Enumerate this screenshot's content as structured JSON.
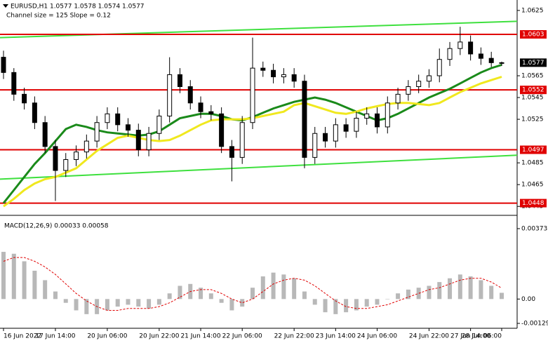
{
  "chart_data": {
    "type": "candlestick",
    "title": "EURUSD,H1  1.0577 1.0578 1.0574 1.0577",
    "subtitle": "Channel size = 125 Slope = 0.12",
    "categories": [
      "16 Jun 2022",
      null,
      null,
      null,
      null,
      "17 Jun 14:00",
      null,
      null,
      null,
      null,
      "20 Jun 06:00",
      null,
      null,
      null,
      null,
      "20 Jun 22:00",
      null,
      null,
      null,
      "21 Jun 14:00",
      null,
      null,
      null,
      "22 Jun 06:00",
      null,
      null,
      null,
      null,
      "22 Jun 22:00",
      null,
      null,
      null,
      "23 Jun 14:00",
      null,
      null,
      null,
      "24 Jun 06:00",
      null,
      null,
      null,
      null,
      "24 Jun 22:00",
      null,
      null,
      null,
      "27 Jun 14:00",
      null,
      null,
      "28 Jun 06:00"
    ],
    "ohlc": [
      [
        1.0582,
        1.0588,
        1.0562,
        1.0568
      ],
      [
        1.0568,
        1.0572,
        1.0542,
        1.0548
      ],
      [
        1.0548,
        1.0554,
        1.0534,
        1.054
      ],
      [
        1.054,
        1.0546,
        1.0516,
        1.0522
      ],
      [
        1.0522,
        1.0528,
        1.0494,
        1.05
      ],
      [
        1.05,
        1.0506,
        1.045,
        1.0478
      ],
      [
        1.0478,
        1.0494,
        1.0472,
        1.0488
      ],
      [
        1.0488,
        1.0501,
        1.0482,
        1.0495
      ],
      [
        1.0495,
        1.0511,
        1.0489,
        1.0505
      ],
      [
        1.0505,
        1.0528,
        1.0499,
        1.0522
      ],
      [
        1.0522,
        1.0536,
        1.0516,
        1.053
      ],
      [
        1.053,
        1.0536,
        1.0514,
        1.052
      ],
      [
        1.052,
        1.0526,
        1.0509,
        1.0515
      ],
      [
        1.0515,
        1.0521,
        1.0491,
        1.0497
      ],
      [
        1.0497,
        1.0518,
        1.0491,
        1.0512
      ],
      [
        1.0512,
        1.0534,
        1.0506,
        1.0528
      ],
      [
        1.0528,
        1.0582,
        1.0522,
        1.0566
      ],
      [
        1.0566,
        1.0572,
        1.0549,
        1.0555
      ],
      [
        1.0555,
        1.0561,
        1.0534,
        1.054
      ],
      [
        1.054,
        1.0546,
        1.0526,
        1.0532
      ],
      [
        1.0532,
        1.0538,
        1.0524,
        1.053
      ],
      [
        1.053,
        1.0536,
        1.0494,
        1.05
      ],
      [
        1.05,
        1.0506,
        1.0468,
        1.049
      ],
      [
        1.049,
        1.0528,
        1.0484,
        1.0522
      ],
      [
        1.0522,
        1.06,
        1.0516,
        1.0572
      ],
      [
        1.0572,
        1.0578,
        1.0564,
        1.057
      ],
      [
        1.057,
        1.0576,
        1.0558,
        1.0564
      ],
      [
        1.0564,
        1.0572,
        1.0558,
        1.0566
      ],
      [
        1.0566,
        1.0572,
        1.0554,
        1.056
      ],
      [
        1.056,
        1.0566,
        1.048,
        1.049
      ],
      [
        1.049,
        1.0518,
        1.0484,
        1.0512
      ],
      [
        1.0512,
        1.0518,
        1.0499,
        1.0505
      ],
      [
        1.0505,
        1.0526,
        1.0499,
        1.052
      ],
      [
        1.052,
        1.0526,
        1.0508,
        1.0514
      ],
      [
        1.0514,
        1.0532,
        1.0508,
        1.0526
      ],
      [
        1.0526,
        1.0536,
        1.052,
        1.053
      ],
      [
        1.053,
        1.0536,
        1.0512,
        1.0518
      ],
      [
        1.0518,
        1.0546,
        1.0512,
        1.054
      ],
      [
        1.054,
        1.0554,
        1.0534,
        1.0548
      ],
      [
        1.0548,
        1.0561,
        1.0542,
        1.0555
      ],
      [
        1.0555,
        1.0566,
        1.0549,
        1.056
      ],
      [
        1.056,
        1.0571,
        1.0554,
        1.0565
      ],
      [
        1.0565,
        1.059,
        1.0559,
        1.058
      ],
      [
        1.058,
        1.0596,
        1.0574,
        1.059
      ],
      [
        1.059,
        1.061,
        1.0584,
        1.0596
      ],
      [
        1.0596,
        1.0602,
        1.0579,
        1.0585
      ],
      [
        1.0585,
        1.0591,
        1.0575,
        1.0581
      ],
      [
        1.0581,
        1.0587,
        1.0573,
        1.0577
      ],
      [
        1.0577,
        1.0578,
        1.0574,
        1.0577
      ]
    ],
    "moving_averages": [
      {
        "color": "#1a8a1a",
        "values": [
          1.0448,
          1.046,
          1.0472,
          1.0484,
          1.0494,
          1.0505,
          1.0516,
          1.052,
          1.0518,
          1.0515,
          1.0513,
          1.0512,
          1.0511,
          1.051,
          1.0511,
          1.0514,
          1.052,
          1.0526,
          1.0528,
          1.053,
          1.053,
          1.0528,
          1.0525,
          1.0524,
          1.0527,
          1.0531,
          1.0535,
          1.0538,
          1.0541,
          1.0543,
          1.0545,
          1.0543,
          1.054,
          1.0536,
          1.0532,
          1.0528,
          1.0524,
          1.0526,
          1.053,
          1.0535,
          1.054,
          1.0545,
          1.0549,
          1.0553,
          1.0558,
          1.0563,
          1.0568,
          1.0572,
          1.0575
        ]
      },
      {
        "color": "#f0e81e",
        "values": [
          1.0445,
          1.0452,
          1.046,
          1.0466,
          1.047,
          1.0472,
          1.0476,
          1.048,
          1.0488,
          1.0496,
          1.0502,
          1.0508,
          1.051,
          1.0508,
          1.0506,
          1.0505,
          1.0506,
          1.051,
          1.0515,
          1.052,
          1.0524,
          1.0525,
          1.0525,
          1.0525,
          1.0526,
          1.0528,
          1.053,
          1.0532,
          1.0538,
          1.054,
          1.0537,
          1.0534,
          1.0531,
          1.053,
          1.0532,
          1.0535,
          1.0537,
          1.0539,
          1.054,
          1.054,
          1.0539,
          1.0538,
          1.054,
          1.0545,
          1.055,
          1.0554,
          1.0558,
          1.0561,
          1.0564
        ]
      }
    ],
    "channel": {
      "color": "#3ee03e",
      "upper": [
        1.06,
        1.0615
      ],
      "lower": [
        1.047,
        1.0492
      ]
    },
    "levels": [
      1.0603,
      1.0552,
      1.0497,
      1.0448
    ],
    "level_color": "#e00000",
    "current_price": 1.0577,
    "ylim": [
      1.044,
      1.0632
    ],
    "yticks": [
      1.0625,
      1.0565,
      1.0545,
      1.0525,
      1.0485,
      1.0465,
      1.0445
    ],
    "macd": {
      "title": "MACD(12,26,9) 0.00033 0.00058",
      "ylim": [
        -0.0014,
        0.0041
      ],
      "yticks": [
        0.00373,
        {
          "value": 0,
          "label": "0.00"
        },
        -0.00129
      ],
      "hist_color": "#b8b8b8",
      "signal_color": "#e00000",
      "histogram": [
        0.0025,
        0.0024,
        0.002,
        0.0015,
        0.001,
        0.0004,
        -0.0002,
        -0.0006,
        -0.0008,
        -0.0008,
        -0.0006,
        -0.0004,
        -0.0003,
        -0.0004,
        -0.0005,
        -0.0003,
        0.0003,
        0.0007,
        0.0008,
        0.0006,
        0.0003,
        -0.0002,
        -0.0006,
        -0.0004,
        0.0006,
        0.0012,
        0.0014,
        0.0013,
        0.0011,
        0.0004,
        -0.0003,
        -0.0007,
        -0.0008,
        -0.0007,
        -0.0006,
        -0.0004,
        -0.0003,
        0,
        0.0003,
        0.0005,
        0.0006,
        0.0007,
        0.0009,
        0.0011,
        0.0013,
        0.0012,
        0.001,
        0.0007,
        0.00033
      ],
      "signal": [
        0.002,
        0.0022,
        0.0022,
        0.002,
        0.0017,
        0.0013,
        0.0008,
        0.0003,
        -0.0001,
        -0.0004,
        -0.0006,
        -0.0006,
        -0.0005,
        -0.0005,
        -0.0005,
        -0.0004,
        -0.0002,
        0.0001,
        0.0004,
        0.0005,
        0.0005,
        0.0003,
        0,
        -0.0002,
        0,
        0.0004,
        0.0008,
        0.001,
        0.0011,
        0.001,
        0.0007,
        0.0003,
        -0.0001,
        -0.0004,
        -0.0005,
        -0.0005,
        -0.0004,
        -0.0003,
        -0.0001,
        0.0001,
        0.0003,
        0.0005,
        0.0006,
        0.0008,
        0.001,
        0.0011,
        0.0011,
        0.0009,
        0.00058
      ]
    }
  }
}
